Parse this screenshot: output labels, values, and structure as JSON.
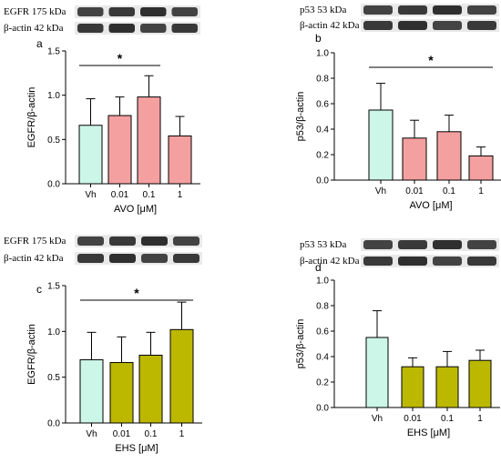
{
  "colors": {
    "vehicle": "#ccf6e8",
    "avo": "#f5a0a0",
    "ehs": "#bcb800",
    "bar_stroke": "#000000"
  },
  "chart_data": [
    {
      "panel": "a",
      "type": "bar",
      "blots": [
        "EGFR 175 kDa",
        "β-actin 42 kDa"
      ],
      "categories": [
        "Vh",
        "0.01",
        "0.1",
        "1"
      ],
      "values": [
        0.66,
        0.77,
        0.98,
        0.54
      ],
      "errors": [
        0.3,
        0.21,
        0.24,
        0.22
      ],
      "ylabel": "EGFR/β-actin",
      "xlabel": "AVO [μM]",
      "ylim": [
        0,
        1.5
      ],
      "yticks": [
        "0.0",
        "0.5",
        "1.0",
        "1.5"
      ],
      "treatment": "avo",
      "significance": {
        "from": 0,
        "to": 2,
        "label": "*"
      }
    },
    {
      "panel": "b",
      "type": "bar",
      "blots": [
        "p53 53 kDa",
        "β-actin 42 kDa"
      ],
      "categories": [
        "Vh",
        "0.01",
        "0.1",
        "1"
      ],
      "values": [
        0.55,
        0.33,
        0.38,
        0.19
      ],
      "errors": [
        0.21,
        0.14,
        0.13,
        0.07
      ],
      "ylabel": "p53/β-actin",
      "xlabel": "AVO [μM]",
      "ylim": [
        0,
        1.0
      ],
      "yticks": [
        "0.0",
        "0.2",
        "0.4",
        "0.6",
        "0.8",
        "1.0"
      ],
      "treatment": "avo",
      "significance": {
        "from": 0,
        "to": 3,
        "label": "*"
      }
    },
    {
      "panel": "c",
      "type": "bar",
      "blots": [
        "EGFR 175 kDa",
        "β-actin 42 kDa"
      ],
      "categories": [
        "Vh",
        "0.01",
        "0.1",
        "1"
      ],
      "values": [
        0.69,
        0.66,
        0.74,
        1.02
      ],
      "errors": [
        0.3,
        0.28,
        0.25,
        0.3
      ],
      "ylabel": "EGFR/β-actin",
      "xlabel": "EHS [μM]",
      "ylim": [
        0,
        1.5
      ],
      "yticks": [
        "0.0",
        "0.5",
        "1.0",
        "1.5"
      ],
      "treatment": "ehs",
      "significance": {
        "from": 0,
        "to": 3,
        "label": "*"
      }
    },
    {
      "panel": "d",
      "type": "bar",
      "blots": [
        "p53 53 kDa",
        "β-actin 42 kDa"
      ],
      "categories": [
        "Vh",
        "0.01",
        "0.1",
        "1"
      ],
      "values": [
        0.55,
        0.32,
        0.32,
        0.37
      ],
      "errors": [
        0.21,
        0.07,
        0.12,
        0.08
      ],
      "ylabel": "p53/β-actin",
      "xlabel": "EHS [μM]",
      "ylim": [
        0,
        1.0
      ],
      "yticks": [
        "0.0",
        "0.2",
        "0.4",
        "0.6",
        "0.8",
        "1.0"
      ],
      "treatment": "ehs",
      "significance": null
    }
  ]
}
